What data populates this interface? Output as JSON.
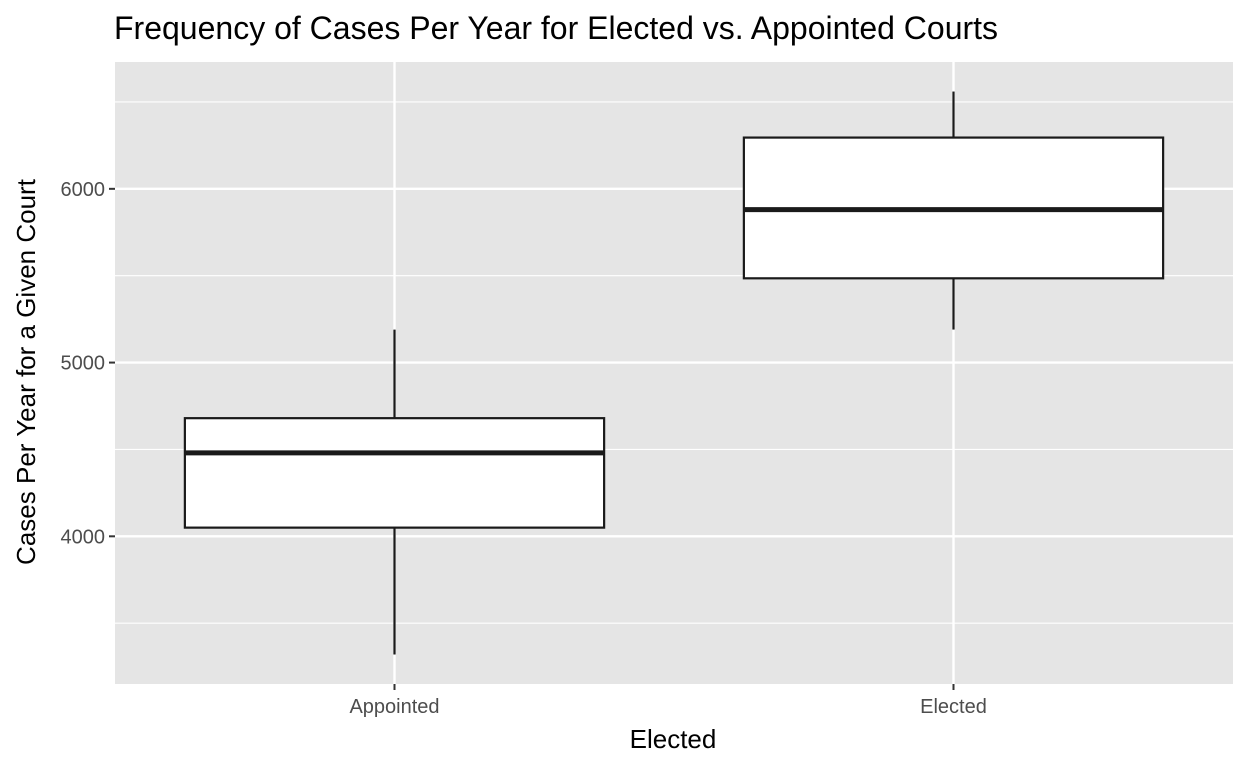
{
  "chart_data": {
    "type": "boxplot",
    "title": "Frequency of Cases Per Year for Elected vs. Appointed Courts",
    "xlabel": "Elected",
    "ylabel": "Cases Per Year for a Given Court",
    "categories": [
      "Appointed",
      "Elected"
    ],
    "boxes": [
      {
        "category": "Appointed",
        "min": 3320,
        "q1": 4050,
        "median": 4480,
        "q3": 4680,
        "max": 5190
      },
      {
        "category": "Elected",
        "min": 5190,
        "q1": 5485,
        "median": 5880,
        "q3": 6295,
        "max": 6560
      }
    ],
    "ylim": [
      3150,
      6730
    ],
    "y_ticks": [
      4000,
      5000,
      6000
    ],
    "y_tick_labels": [
      "4000",
      "5000",
      "6000"
    ],
    "y_minor_ticks": [
      3500,
      4500,
      5500,
      6500
    ],
    "grid": true,
    "legend": "none",
    "colors": {
      "panel_background": "#e5e5e5",
      "grid": "#ffffff",
      "box_fill": "#ffffff",
      "box_line": "#1a1a1a",
      "tick_mark": "#333333"
    }
  }
}
